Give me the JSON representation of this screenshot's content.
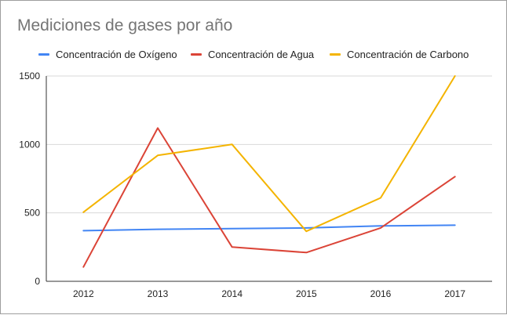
{
  "chart_data": {
    "type": "line",
    "title": "Mediciones de gases por año",
    "categories": [
      "2012",
      "2013",
      "2014",
      "2015",
      "2016",
      "2017"
    ],
    "ylim": [
      0,
      1500
    ],
    "yticks": [
      "0",
      "500",
      "1000",
      "1500"
    ],
    "xlabel": "",
    "ylabel": "",
    "grid": true,
    "legend_position": "top",
    "series": [
      {
        "name": "Concentración de Oxígeno",
        "color": "#4285f4",
        "values": [
          370,
          380,
          385,
          390,
          405,
          410
        ]
      },
      {
        "name": "Concentración de Agua",
        "color": "#db4437",
        "values": [
          105,
          1120,
          250,
          210,
          390,
          765
        ]
      },
      {
        "name": "Concentración de Carbono",
        "color": "#f4b400",
        "values": [
          505,
          920,
          1000,
          365,
          610,
          1500
        ]
      }
    ]
  }
}
